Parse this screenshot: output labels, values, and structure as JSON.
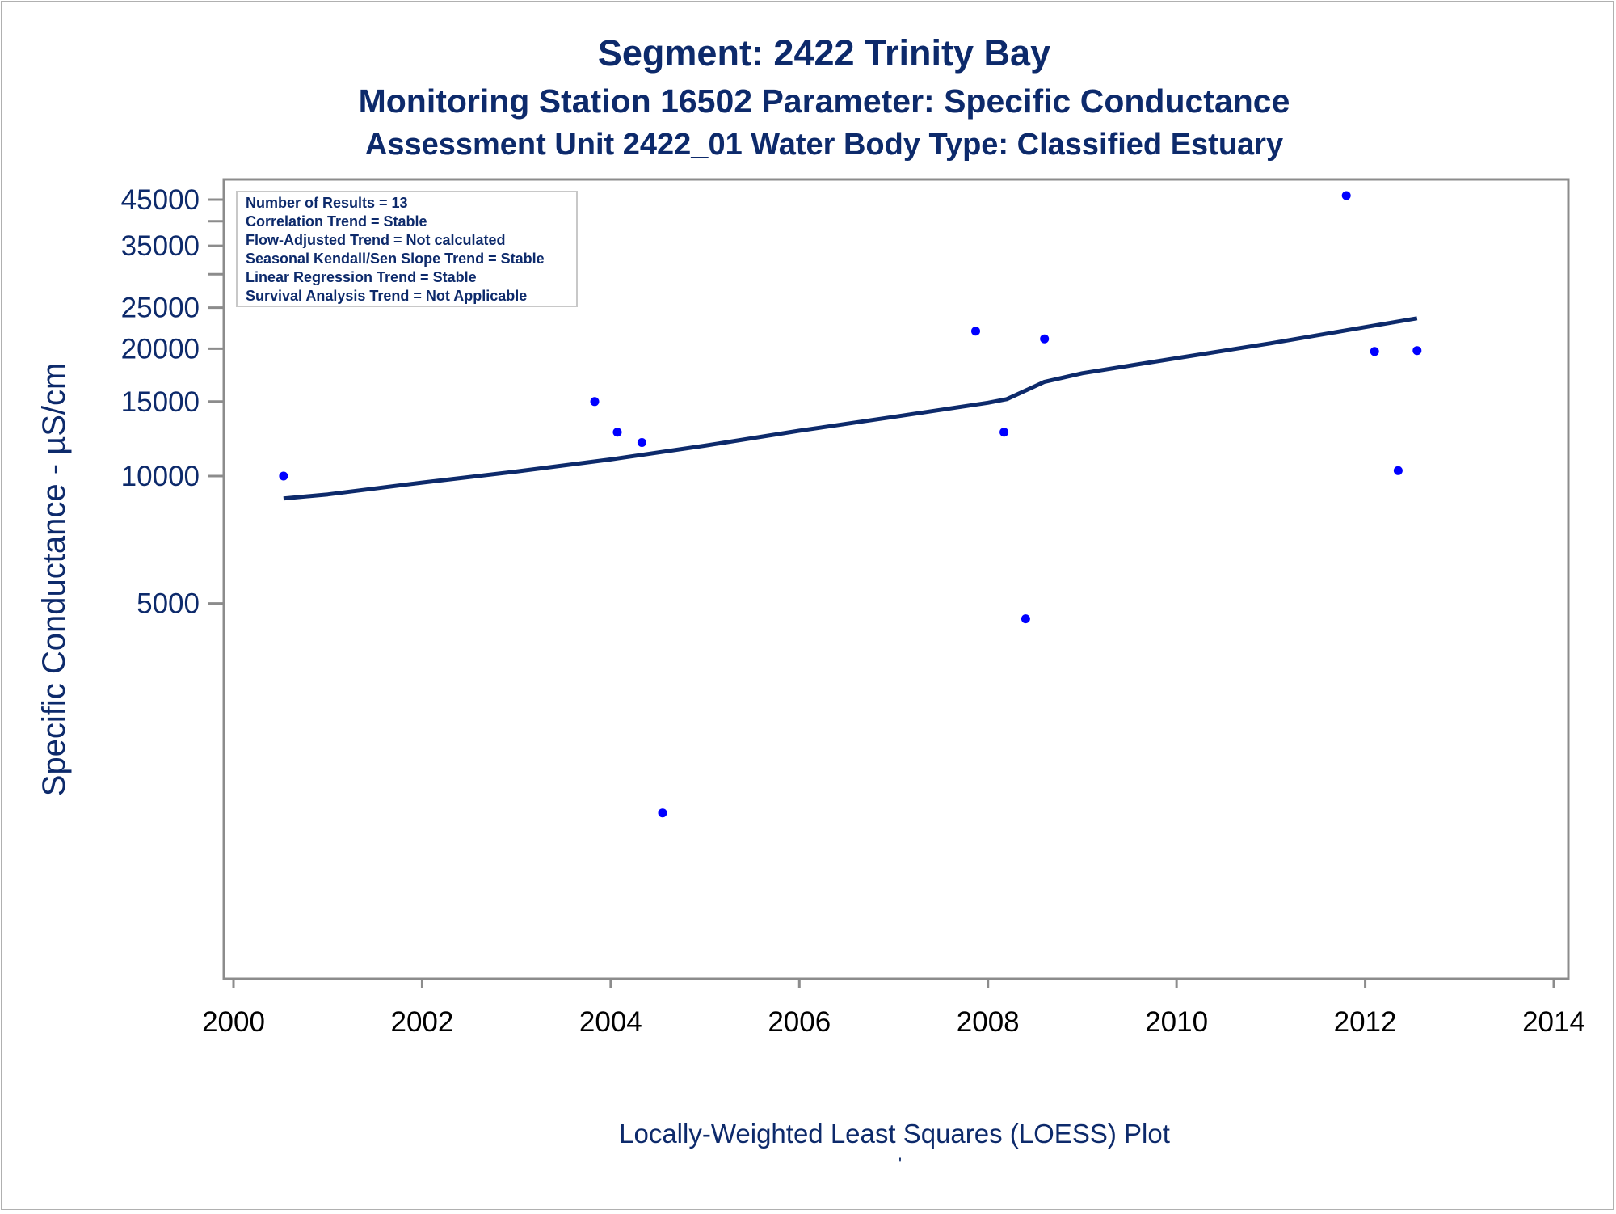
{
  "titles": {
    "line1": "Segment: 2422  Trinity Bay",
    "line2": "Monitoring Station 16502 Parameter: Specific Conductance",
    "line3": "Assessment Unit 2422_01   Water Body Type: Classified Estuary"
  },
  "footer": {
    "caption": "Locally-Weighted Least Squares (LOESS) Plot",
    "mark": "'"
  },
  "stats": [
    "Number of Results = 13",
    "Correlation Trend = Stable",
    "Flow-Adjusted Trend = Not calculated",
    "Seasonal Kendall/Sen Slope Trend = Stable",
    "Linear Regression Trend = Stable",
    "Survival Analysis Trend = Not Applicable"
  ],
  "colors": {
    "text": "#0d2a6b",
    "points": "#0000ff",
    "line": "#0d2a6b",
    "axis": "#8c8c8c"
  },
  "chart_data": {
    "type": "scatter",
    "xlabel": "",
    "ylabel": "Specific Conductance -  µS/cm",
    "xlim": [
      2000,
      2014
    ],
    "y_scale": "log",
    "ylim": [
      1500,
      48000
    ],
    "x_ticks": [
      2000,
      2002,
      2004,
      2006,
      2008,
      2010,
      2012,
      2014
    ],
    "y_ticks_labeled": [
      5000,
      10000,
      15000,
      20000,
      25000,
      35000,
      45000
    ],
    "y_ticks_minor": [
      30000,
      40000
    ],
    "grid": false,
    "series": [
      {
        "type": "scatter",
        "x": [
          2000.53,
          2003.83,
          2004.07,
          2004.33,
          2004.55,
          2007.87,
          2008.17,
          2008.4,
          2008.6,
          2011.8,
          2012.1,
          2012.35,
          2012.55
        ],
        "y": [
          10000,
          15000,
          12700,
          12000,
          1600,
          22000,
          12700,
          4600,
          21100,
          46000,
          19700,
          10300,
          19800
        ]
      },
      {
        "type": "line",
        "x": [
          2000.53,
          2001.0,
          2002.0,
          2003.0,
          2004.0,
          2005.0,
          2006.0,
          2007.0,
          2008.0,
          2008.2,
          2008.6,
          2009.0,
          2010.0,
          2011.0,
          2011.8,
          2012.55
        ],
        "y": [
          8850,
          9050,
          9650,
          10250,
          10950,
          11800,
          12800,
          13800,
          14900,
          15200,
          16700,
          17500,
          19000,
          20600,
          22100,
          23600
        ]
      }
    ]
  }
}
